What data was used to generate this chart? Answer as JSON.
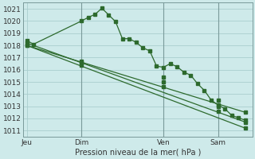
{
  "background_color": "#ceeaea",
  "grid_color": "#aacece",
  "line_color": "#2d6a2d",
  "marker_color": "#2d6a2d",
  "xlabel_text": "Pression niveau de la mer( hPa )",
  "x_tick_labels": [
    "Jeu",
    "Dim",
    "Ven",
    "Sam"
  ],
  "x_tick_positions": [
    0,
    8,
    20,
    28
  ],
  "ylim": [
    1010.5,
    1021.5
  ],
  "yticks": [
    1011,
    1012,
    1013,
    1014,
    1015,
    1016,
    1017,
    1018,
    1019,
    1020,
    1021
  ],
  "xlim": [
    -0.5,
    33
  ],
  "series1_x": [
    0,
    1,
    8,
    9,
    10,
    11,
    12,
    13,
    14,
    15,
    16,
    17,
    18,
    19,
    20,
    21,
    22,
    23,
    24,
    25,
    26,
    27,
    28,
    29,
    30,
    31,
    32
  ],
  "series1_y": [
    1018.4,
    1018.1,
    1020.0,
    1020.3,
    1020.55,
    1021.05,
    1020.5,
    1019.95,
    1018.55,
    1018.55,
    1018.25,
    1017.8,
    1017.55,
    1016.3,
    1016.2,
    1016.5,
    1016.25,
    1015.8,
    1015.55,
    1014.85,
    1014.3,
    1013.5,
    1013.1,
    1012.8,
    1012.25,
    1012.05,
    1011.85
  ],
  "series2_x": [
    0,
    32
  ],
  "series2_y": [
    1018.2,
    1011.7
  ],
  "series3_x": [
    0,
    32
  ],
  "series3_y": [
    1018.0,
    1011.2
  ],
  "series4_x": [
    0,
    32
  ],
  "series4_y": [
    1018.0,
    1012.5
  ],
  "series2_markers_x": [
    0,
    8,
    20,
    28,
    32
  ],
  "series2_markers_y": [
    1018.2,
    1016.6,
    1015.0,
    1013.0,
    1011.7
  ],
  "series3_markers_x": [
    0,
    8,
    20,
    28,
    32
  ],
  "series3_markers_y": [
    1018.0,
    1016.35,
    1014.6,
    1012.6,
    1011.2
  ],
  "series4_markers_x": [
    0,
    8,
    20,
    28,
    32
  ],
  "series4_markers_y": [
    1018.0,
    1016.7,
    1015.4,
    1013.5,
    1012.5
  ],
  "vline_positions": [
    8,
    20,
    28
  ],
  "vline_color": "#7a9a9a",
  "fig_width": 3.2,
  "fig_height": 2.0,
  "dpi": 100
}
